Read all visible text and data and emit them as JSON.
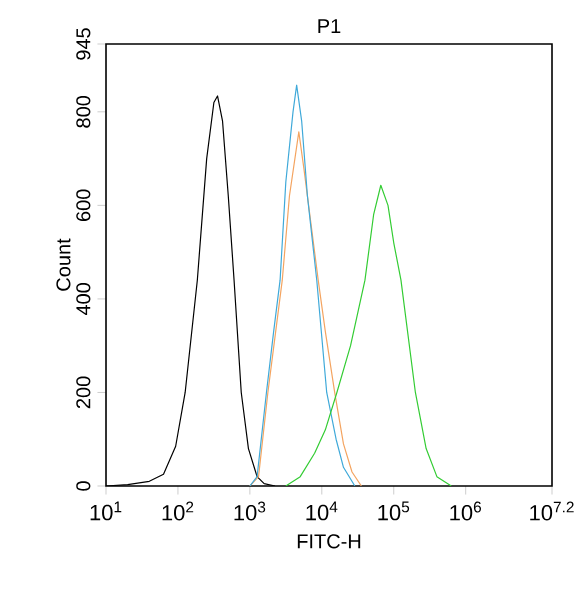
{
  "chart_data": {
    "type": "line",
    "title": "P1",
    "xlabel": "FITC-H",
    "ylabel": "Count",
    "log": "x",
    "grid": false,
    "marker": "none",
    "line_style": "solid",
    "xlim": [
      10,
      15848932
    ],
    "ylim": [
      0,
      945
    ],
    "xticks": [
      {
        "value": 10,
        "label": "10$^{1}$"
      },
      {
        "value": 100,
        "label": "10$^{2}$"
      },
      {
        "value": 1000,
        "label": "10$^{3}$"
      },
      {
        "value": 10000,
        "label": "10$^{4}$"
      },
      {
        "value": 100000,
        "label": "10$^{5}$"
      },
      {
        "value": 1000000,
        "label": "10$^{6}$"
      },
      {
        "value": 15848932,
        "label": "10$^{7.2}$"
      }
    ],
    "yticks": [
      0,
      200,
      400,
      600,
      800,
      945
    ],
    "series": [
      {
        "color": "#000000",
        "x": [
          10,
          20,
          40,
          63,
          93,
          126,
          186,
          251,
          316,
          355,
          417,
          501,
          603,
          759,
          955,
          1260,
          1580,
          2240
        ],
        "values": [
          0,
          3,
          10,
          25,
          85,
          200,
          440,
          700,
          820,
          834,
          780,
          620,
          440,
          200,
          80,
          20,
          5,
          0
        ]
      },
      {
        "color": "#f4a460",
        "x": [
          1000,
          1320,
          1780,
          2240,
          2820,
          3550,
          4790,
          5620,
          7080,
          8910,
          11200,
          15100,
          20000,
          26300,
          35500
        ],
        "values": [
          0,
          20,
          200,
          320,
          440,
          620,
          757,
          680,
          560,
          440,
          330,
          200,
          90,
          30,
          0
        ]
      },
      {
        "color": "#3fa9d9",
        "x": [
          1000,
          1260,
          1700,
          2140,
          2630,
          3160,
          3980,
          4470,
          5250,
          6310,
          8510,
          11700,
          15800,
          20000,
          28800
        ],
        "values": [
          0,
          20,
          200,
          330,
          440,
          650,
          800,
          857,
          780,
          620,
          440,
          200,
          100,
          40,
          0
        ]
      },
      {
        "color": "#33cc33",
        "x": [
          3160,
          5010,
          7940,
          11200,
          16200,
          25100,
          39800,
          52500,
          66100,
          83200,
          100000,
          126000,
          200000,
          282000,
          398000,
          631000
        ],
        "values": [
          0,
          20,
          70,
          120,
          200,
          300,
          440,
          580,
          643,
          600,
          520,
          440,
          200,
          80,
          20,
          0
        ]
      }
    ]
  }
}
